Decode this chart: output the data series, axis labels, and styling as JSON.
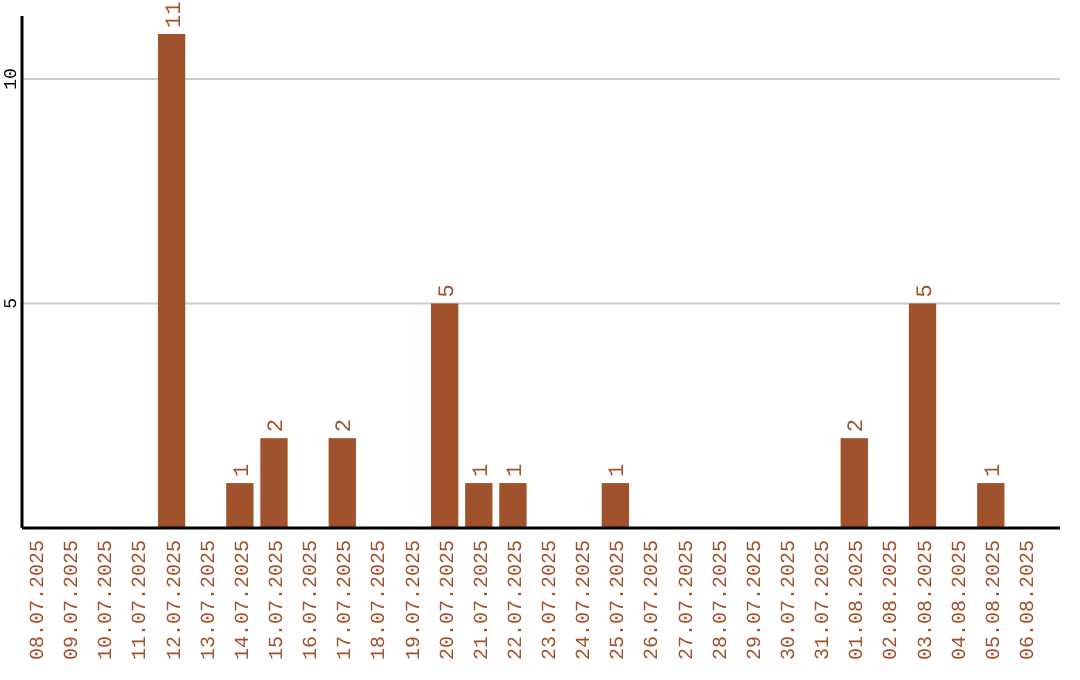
{
  "chart_data": {
    "type": "bar",
    "categories": [
      "08.07.2025",
      "09.07.2025",
      "10.07.2025",
      "11.07.2025",
      "12.07.2025",
      "13.07.2025",
      "14.07.2025",
      "15.07.2025",
      "16.07.2025",
      "17.07.2025",
      "18.07.2025",
      "19.07.2025",
      "20.07.2025",
      "21.07.2025",
      "22.07.2025",
      "23.07.2025",
      "24.07.2025",
      "25.07.2025",
      "26.07.2025",
      "27.07.2025",
      "28.07.2025",
      "29.07.2025",
      "30.07.2025",
      "31.07.2025",
      "01.08.2025",
      "02.08.2025",
      "03.08.2025",
      "04.08.2025",
      "05.08.2025",
      "06.08.2025"
    ],
    "values": [
      0,
      0,
      0,
      0,
      11,
      0,
      1,
      2,
      0,
      2,
      0,
      0,
      5,
      1,
      1,
      0,
      0,
      1,
      0,
      0,
      0,
      0,
      0,
      0,
      2,
      0,
      5,
      0,
      1,
      0
    ],
    "value_labels": [
      null,
      null,
      null,
      null,
      "11",
      null,
      "1",
      "2",
      null,
      "2",
      null,
      null,
      "5",
      "1",
      "1",
      null,
      null,
      "1",
      null,
      null,
      null,
      null,
      null,
      null,
      "2",
      null,
      "5",
      null,
      "1",
      null
    ],
    "color": "#a0522d",
    "ylim": [
      0,
      11.4
    ],
    "yticks": [
      5,
      10
    ],
    "grid": "y"
  }
}
